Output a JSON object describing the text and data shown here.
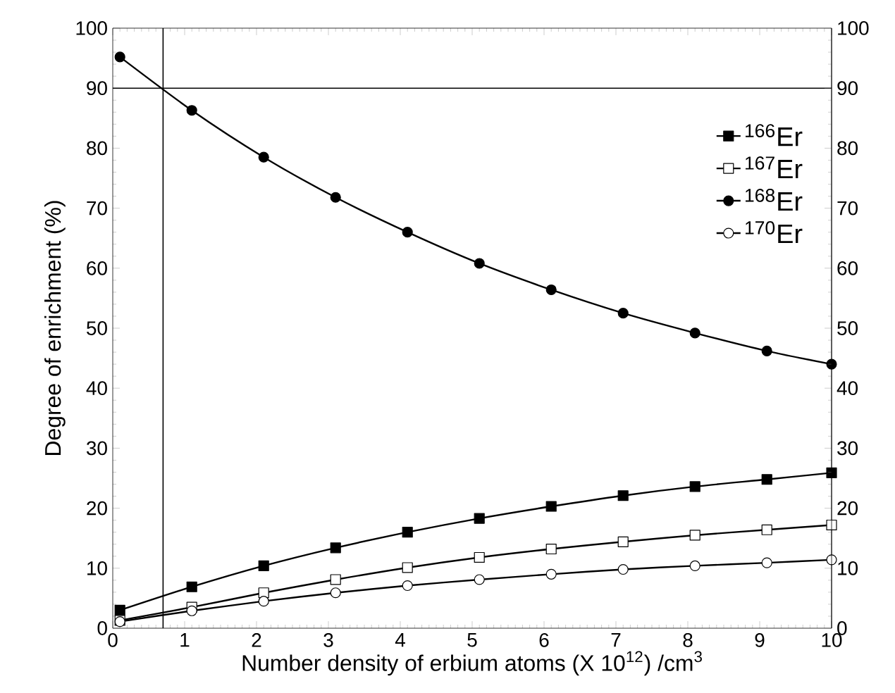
{
  "chart_data": {
    "type": "line",
    "xlabel": "Number density of erbium atoms (X 10$^{12}$) /cm$^{3}$",
    "ylabel": "Degree of enrichment (%)",
    "x": [
      0.1,
      1.1,
      2.1,
      3.1,
      4.1,
      5.1,
      6.1,
      7.1,
      8.1,
      9.1,
      10
    ],
    "series": [
      {
        "name": "$^{166}$Er",
        "color": "#000000",
        "marker": "square",
        "values": [
          3.0,
          6.9,
          10.4,
          13.4,
          16.0,
          18.3,
          20.3,
          22.1,
          23.6,
          24.8,
          25.9
        ]
      },
      {
        "name": "$^{167}$Er",
        "color": "#ffffff",
        "marker": "square",
        "values": [
          1.3,
          3.5,
          5.9,
          8.1,
          10.1,
          11.8,
          13.2,
          14.4,
          15.5,
          16.4,
          17.2
        ]
      },
      {
        "name": "$^{168}$Er",
        "color": "#000000",
        "marker": "circle",
        "values": [
          95.2,
          86.3,
          78.5,
          71.8,
          66.0,
          60.8,
          56.4,
          52.5,
          49.2,
          46.2,
          44.0
        ]
      },
      {
        "name": "$^{170}$Er",
        "color": "#ffffff",
        "marker": "circle",
        "values": [
          1.1,
          2.9,
          4.5,
          5.9,
          7.1,
          8.1,
          9.0,
          9.8,
          10.4,
          10.9,
          11.4
        ]
      }
    ],
    "xlim": [
      0,
      10
    ],
    "xticks": [
      0,
      1,
      2,
      3,
      4,
      5,
      6,
      7,
      8,
      9,
      10
    ],
    "ylim": [
      0,
      100
    ],
    "yticks": [
      0,
      10,
      20,
      30,
      40,
      50,
      60,
      70,
      80,
      90,
      100
    ],
    "y2lim": [
      0,
      100
    ],
    "y2ticks": [
      0,
      10,
      20,
      30,
      40,
      50,
      60,
      70,
      80,
      90,
      100
    ],
    "ref_lines": [
      {
        "axis": "y",
        "value": 90
      },
      {
        "axis": "x",
        "value": 0.7
      }
    ],
    "legend": "top right",
    "grid": false,
    "line_style": "solid"
  }
}
